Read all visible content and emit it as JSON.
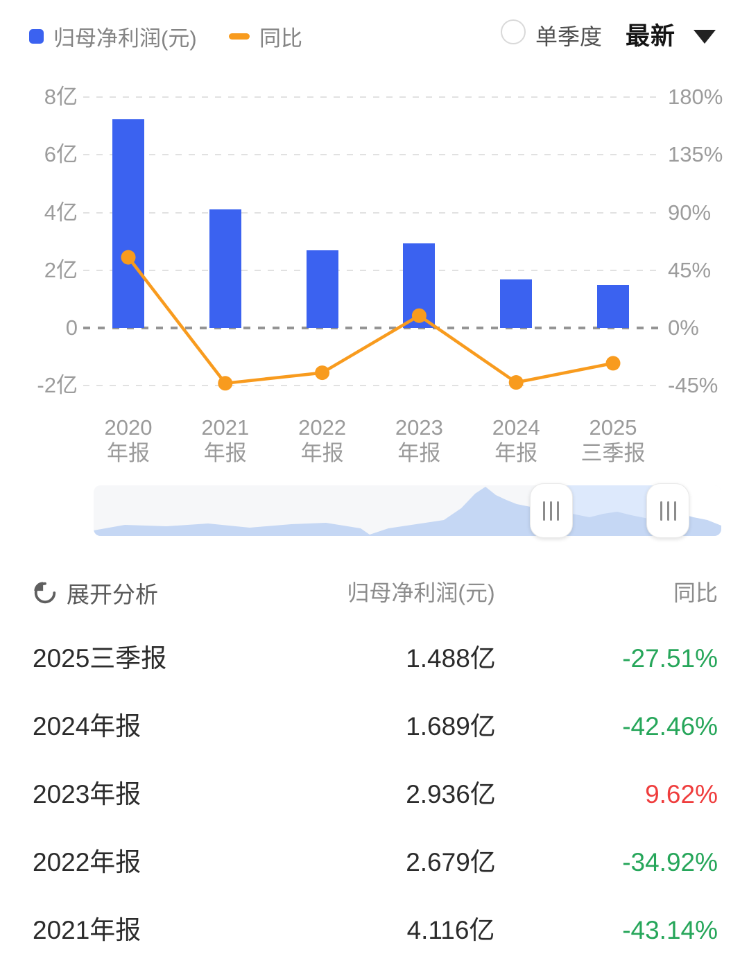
{
  "colors": {
    "bar": "#3b62f0",
    "line": "#f89b1e",
    "green": "#26a65a",
    "red": "#ef3d3d",
    "axis_text": "#9c9c9c",
    "grid": "#e1e1e1",
    "zero_line": "#949494",
    "nav_fill": "#c5d7f4",
    "nav_bg": "#f6f7f9",
    "nav_selected": "#dde9fc"
  },
  "legend": {
    "bar_label": "归母净利润(元)",
    "line_label": "同比"
  },
  "controls": {
    "radio_label": "单季度",
    "dropdown_value": "最新"
  },
  "chart_data": {
    "type": "bar+line",
    "categories": [
      "2020年报",
      "2021年报",
      "2022年报",
      "2023年报",
      "2024年报",
      "2025三季报"
    ],
    "x_tick_lines": [
      [
        "2020",
        "年报"
      ],
      [
        "2021",
        "年报"
      ],
      [
        "2022",
        "年报"
      ],
      [
        "2023",
        "年报"
      ],
      [
        "2024",
        "年报"
      ],
      [
        "2025",
        "三季报"
      ]
    ],
    "series": [
      {
        "name": "归母净利润(元)",
        "type": "bar",
        "unit": "亿",
        "axis": "left",
        "values": [
          7.24,
          4.116,
          2.679,
          2.936,
          1.689,
          1.488
        ]
      },
      {
        "name": "同比",
        "type": "line",
        "unit": "%",
        "axis": "right",
        "values": [
          55.1,
          -43.14,
          -34.92,
          9.62,
          -42.46,
          -27.51
        ]
      }
    ],
    "left_axis": {
      "tick_labels": [
        "8亿",
        "6亿",
        "4亿",
        "2亿",
        "0",
        "-2亿"
      ],
      "ticks": [
        8,
        6,
        4,
        2,
        0,
        -2
      ],
      "min": -2,
      "max": 8
    },
    "right_axis": {
      "tick_labels": [
        "180%",
        "135%",
        "90%",
        "45%",
        "0%",
        "-45%"
      ],
      "ticks": [
        180,
        135,
        90,
        45,
        0,
        -45
      ],
      "min": -45,
      "max": 180
    },
    "grid": "dashed-horizontal",
    "legend_position": "top-left"
  },
  "navigator": {
    "window": [
      0.729,
      0.915
    ],
    "sparkline": [
      [
        0,
        65
      ],
      [
        45,
        57
      ],
      [
        105,
        59
      ],
      [
        165,
        55
      ],
      [
        225,
        61
      ],
      [
        285,
        56
      ],
      [
        335,
        54
      ],
      [
        385,
        62
      ],
      [
        398,
        71
      ],
      [
        425,
        62
      ],
      [
        465,
        56
      ],
      [
        505,
        50
      ],
      [
        530,
        33
      ],
      [
        550,
        12
      ],
      [
        565,
        2
      ],
      [
        580,
        14
      ],
      [
        595,
        21
      ],
      [
        610,
        27
      ],
      [
        630,
        31
      ],
      [
        655,
        36
      ],
      [
        685,
        40
      ],
      [
        715,
        46
      ],
      [
        735,
        41
      ],
      [
        755,
        38
      ],
      [
        775,
        43
      ],
      [
        800,
        48
      ],
      [
        820,
        41
      ],
      [
        840,
        39
      ],
      [
        865,
        46
      ],
      [
        885,
        50
      ],
      [
        905,
        58
      ]
    ]
  },
  "table": {
    "expand_label": "展开分析",
    "col_value": "归母净利润(元)",
    "col_yoy": "同比",
    "rows": [
      {
        "period": "2025三季报",
        "value": "1.488亿",
        "yoy": "-27.51%",
        "yoy_color": "green"
      },
      {
        "period": "2024年报",
        "value": "1.689亿",
        "yoy": "-42.46%",
        "yoy_color": "green"
      },
      {
        "period": "2023年报",
        "value": "2.936亿",
        "yoy": "9.62%",
        "yoy_color": "red"
      },
      {
        "period": "2022年报",
        "value": "2.679亿",
        "yoy": "-34.92%",
        "yoy_color": "green"
      },
      {
        "period": "2021年报",
        "value": "4.116亿",
        "yoy": "-43.14%",
        "yoy_color": "green"
      }
    ]
  }
}
